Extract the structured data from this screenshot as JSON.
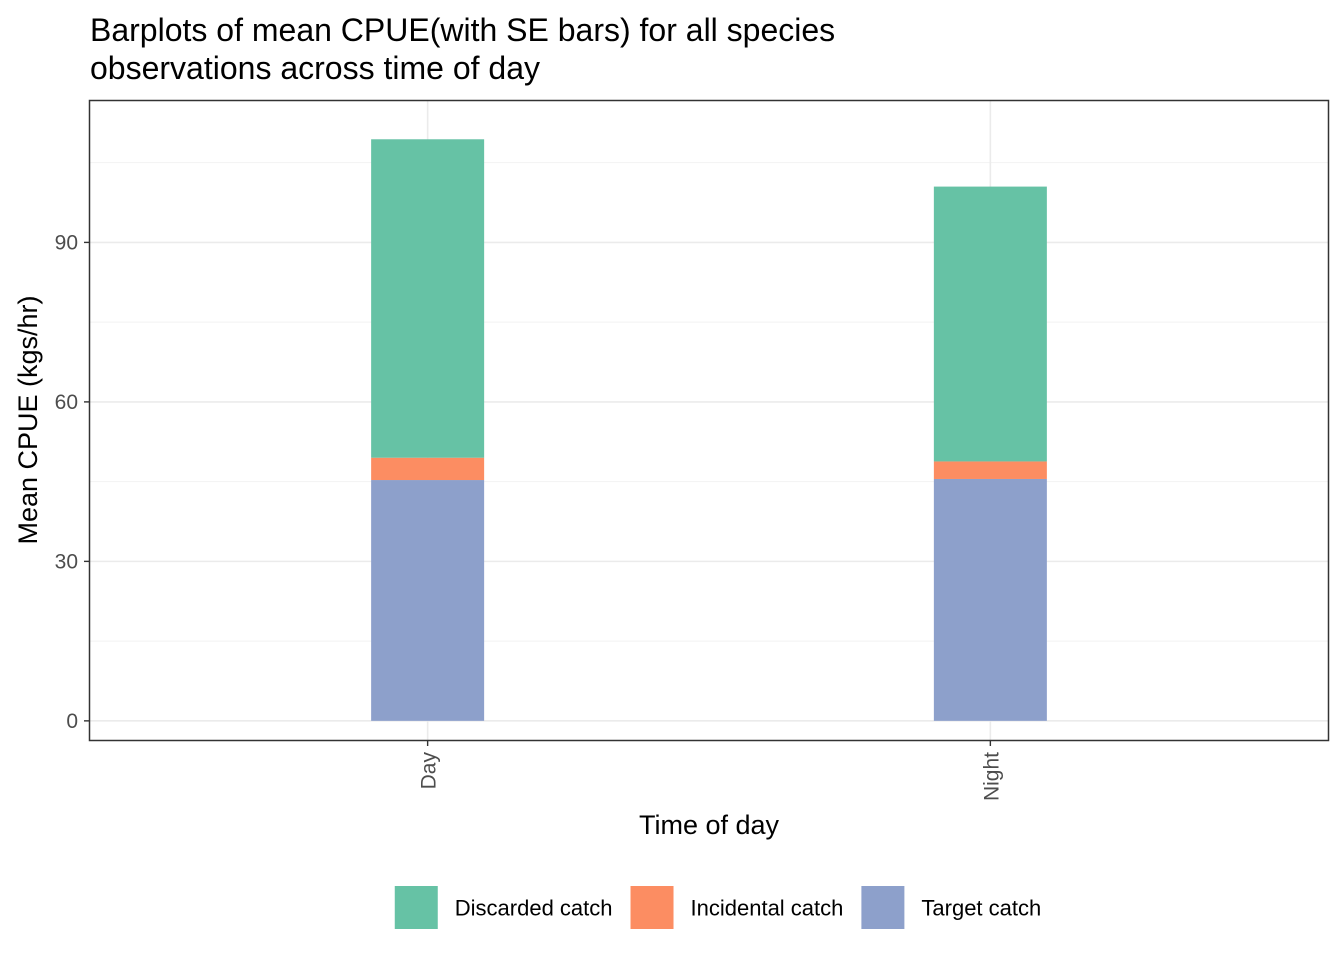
{
  "chart_data": {
    "type": "bar",
    "stacked": true,
    "title": "Barplots of mean CPUE(with SE bars) for all species observations across time of day",
    "title_lines": [
      "Barplots of mean CPUE(with SE bars) for all species",
      "observations across time of day"
    ],
    "xlabel": "Time of day",
    "ylabel": "Mean CPUE (kgs/hr)",
    "categories": [
      "Day",
      "Night"
    ],
    "x_tick_rotation": "vertical",
    "ylim": [
      -3.6,
      116.6
    ],
    "yticks": [
      0,
      30,
      60,
      90
    ],
    "ytick_labels": [
      "0",
      "30",
      "60",
      "90"
    ],
    "grid": true,
    "legend_position": "bottom",
    "series": [
      {
        "name": "Target catch",
        "values": [
          45.3,
          45.5
        ],
        "color": "#8DA0CB"
      },
      {
        "name": "Incidental catch",
        "values": [
          4.2,
          3.3
        ],
        "color": "#FC8D62"
      },
      {
        "name": "Discarded catch",
        "values": [
          59.9,
          51.7
        ],
        "color": "#66C2A5"
      }
    ],
    "legend_order": [
      "Discarded catch",
      "Incidental catch",
      "Target catch"
    ]
  }
}
